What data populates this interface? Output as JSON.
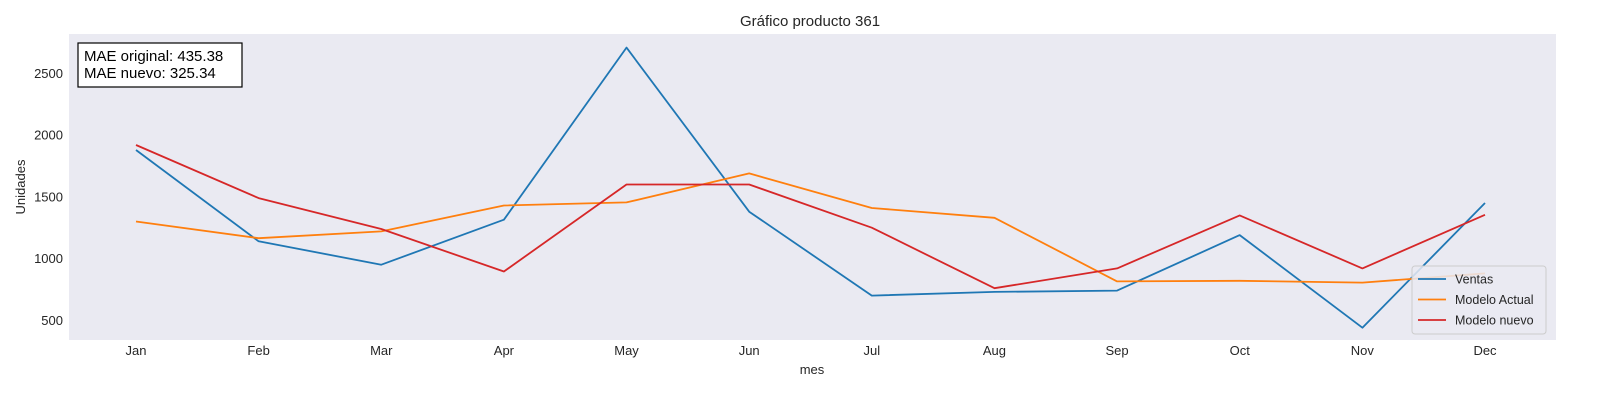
{
  "chart_data": {
    "type": "line",
    "title": "Gráfico producto 361",
    "xlabel": "mes",
    "ylabel": "Unidades",
    "categories": [
      "Jan",
      "Feb",
      "Mar",
      "Apr",
      "May",
      "Jun",
      "Jul",
      "Aug",
      "Sep",
      "Oct",
      "Nov",
      "Dec"
    ],
    "yticks": [
      500,
      1000,
      1500,
      2000,
      2500
    ],
    "ylim": [
      340,
      2820
    ],
    "grid": false,
    "background_color": "#eaeaf2",
    "legend_position": "lower-right",
    "annotation": [
      "MAE original: 435.38",
      "MAE nuevo: 325.34"
    ],
    "series": [
      {
        "name": "Ventas",
        "color": "#1f77b4",
        "values": [
          1880,
          1140,
          950,
          1315,
          2710,
          1380,
          700,
          730,
          740,
          1190,
          440,
          1450
        ]
      },
      {
        "name": "Modelo Actual",
        "color": "#ff7f0e",
        "values": [
          1300,
          1165,
          1220,
          1430,
          1455,
          1690,
          1410,
          1330,
          815,
          820,
          805,
          880
        ]
      },
      {
        "name": "Modelo nuevo",
        "color": "#d62728",
        "values": [
          1920,
          1490,
          1240,
          895,
          1600,
          1600,
          1250,
          760,
          920,
          1350,
          920,
          1355
        ]
      }
    ]
  }
}
